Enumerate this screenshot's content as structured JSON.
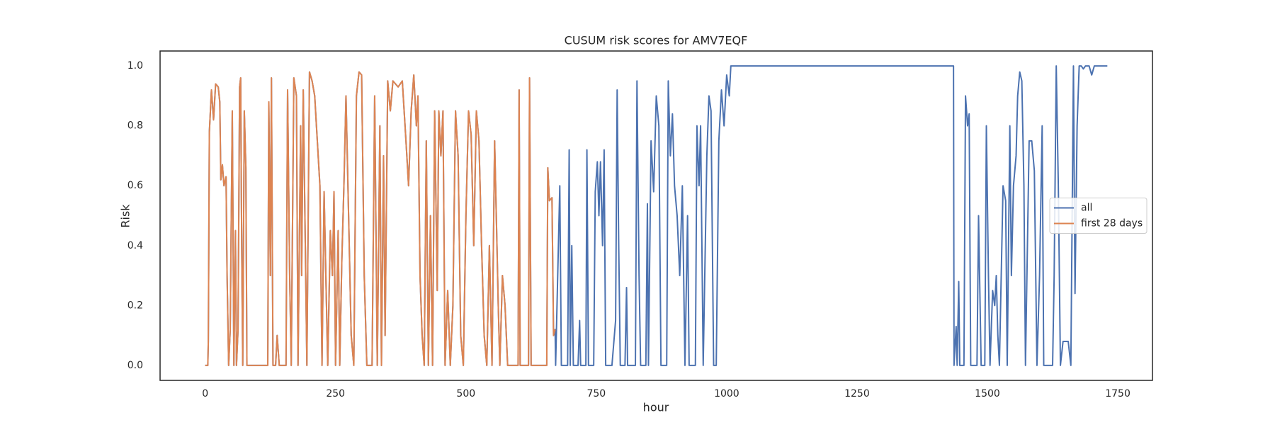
{
  "chart_data": {
    "type": "line",
    "title": "CUSUM risk scores for AMV7EQF",
    "x_label": "hour",
    "y_label": "Risk",
    "xlim": [
      -86.5,
      1816.5
    ],
    "ylim": [
      -0.05,
      1.05
    ],
    "xticks": [
      0,
      250,
      500,
      750,
      1000,
      1250,
      1500,
      1750
    ],
    "yticks": [
      {
        "value": 0,
        "label": "0.0"
      },
      0.2,
      0.4,
      0.6,
      0.8,
      {
        "value": 1,
        "label": "1.0"
      }
    ],
    "grid": false,
    "legend_loc": "center right",
    "series": [
      {
        "name": "all",
        "color": "#4c72b0",
        "x": [
          0,
          5,
          6,
          8,
          12,
          16,
          20,
          25,
          28,
          30,
          33,
          36,
          40,
          42,
          45,
          48,
          52,
          55,
          58,
          60,
          63,
          66,
          68,
          70,
          72,
          75,
          78,
          80,
          85,
          120,
          122,
          125,
          127,
          130,
          135,
          138,
          142,
          155,
          158,
          162,
          165,
          170,
          175,
          178,
          183,
          185,
          188,
          192,
          195,
          200,
          205,
          210,
          215,
          220,
          224,
          228,
          232,
          235,
          240,
          244,
          247,
          250,
          255,
          258,
          262,
          266,
          270,
          275,
          280,
          285,
          290,
          295,
          300,
          305,
          310,
          320,
          325,
          330,
          335,
          338,
          342,
          345,
          350,
          355,
          360,
          370,
          378,
          385,
          390,
          395,
          400,
          405,
          408,
          412,
          416,
          420,
          424,
          428,
          432,
          436,
          440,
          445,
          448,
          452,
          456,
          460,
          465,
          470,
          475,
          480,
          485,
          490,
          495,
          500,
          505,
          510,
          515,
          520,
          525,
          530,
          535,
          540,
          545,
          550,
          555,
          558,
          562,
          565,
          570,
          575,
          580,
          600,
          602,
          604,
          620,
          622,
          625,
          655,
          657,
          660,
          665,
          668,
          671,
          672,
          680,
          683,
          695,
          698,
          700,
          703,
          706,
          715,
          718,
          720,
          730,
          732,
          735,
          745,
          748,
          752,
          755,
          758,
          762,
          765,
          768,
          780,
          787,
          790,
          793,
          796,
          805,
          808,
          810,
          825,
          828,
          832,
          835,
          845,
          848,
          850,
          855,
          860,
          865,
          870,
          874,
          885,
          888,
          892,
          896,
          900,
          905,
          910,
          915,
          920,
          925,
          928,
          940,
          943,
          947,
          950,
          955,
          962,
          966,
          970,
          975,
          980,
          985,
          990,
          995,
          1000,
          1005,
          1008,
          1435,
          1436,
          1440,
          1442,
          1445,
          1447,
          1455,
          1458,
          1462,
          1465,
          1468,
          1480,
          1483,
          1486,
          1488,
          1495,
          1498,
          1502,
          1505,
          1510,
          1514,
          1517,
          1520,
          1523,
          1530,
          1535,
          1538,
          1543,
          1546,
          1550,
          1555,
          1558,
          1562,
          1566,
          1570,
          1573,
          1580,
          1585,
          1590,
          1595,
          1600,
          1605,
          1608,
          1625,
          1628,
          1632,
          1636,
          1640,
          1645,
          1655,
          1660,
          1665,
          1668,
          1672,
          1676,
          1680,
          1684,
          1688,
          1695,
          1700,
          1705,
          1730
        ],
        "values": [
          0,
          0,
          0.08,
          0.78,
          0.92,
          0.82,
          0.94,
          0.93,
          0.88,
          0.62,
          0.67,
          0.6,
          0.63,
          0.3,
          0,
          0.12,
          0.85,
          0,
          0.45,
          0,
          0.12,
          0.93,
          0.96,
          0.4,
          0,
          0.85,
          0.66,
          0,
          0,
          0,
          0.88,
          0.3,
          0.96,
          0,
          0,
          0.1,
          0,
          0,
          0.92,
          0.3,
          0,
          0.96,
          0.9,
          0,
          0.8,
          0.3,
          0.92,
          0.4,
          0,
          0.98,
          0.95,
          0.9,
          0.75,
          0.6,
          0,
          0.58,
          0.25,
          0,
          0.45,
          0.3,
          0.58,
          0,
          0.45,
          0,
          0.35,
          0.6,
          0.9,
          0.5,
          0.1,
          0,
          0.9,
          0.98,
          0.97,
          0.3,
          0,
          0,
          0.9,
          0,
          0.8,
          0,
          0.7,
          0.1,
          0.95,
          0.85,
          0.95,
          0.93,
          0.95,
          0.75,
          0.6,
          0.85,
          0.97,
          0.8,
          0.9,
          0.3,
          0.1,
          0,
          0.75,
          0,
          0.5,
          0,
          0.85,
          0.25,
          0.85,
          0.7,
          0.85,
          0,
          0.25,
          0,
          0.2,
          0.85,
          0.7,
          0.1,
          0,
          0.5,
          0.85,
          0.77,
          0.4,
          0.85,
          0.75,
          0.4,
          0.1,
          0,
          0.4,
          0,
          0.75,
          0.52,
          0.2,
          0,
          0.3,
          0.2,
          0,
          0,
          0.92,
          0,
          0,
          0.96,
          0,
          0,
          0.66,
          0.55,
          0.56,
          0.1,
          0.12,
          0,
          0.6,
          0,
          0,
          0.72,
          0,
          0.4,
          0,
          0,
          0.15,
          0,
          0,
          0.72,
          0,
          0,
          0.58,
          0.68,
          0.5,
          0.68,
          0.4,
          0.72,
          0,
          0,
          0.15,
          0.92,
          0.4,
          0,
          0,
          0.26,
          0,
          0,
          0.95,
          0.3,
          0,
          0,
          0.54,
          0,
          0.75,
          0.58,
          0.9,
          0.8,
          0,
          0,
          0.95,
          0.7,
          0.84,
          0.6,
          0.5,
          0.3,
          0.6,
          0,
          0.5,
          0,
          0,
          0.8,
          0.6,
          0.8,
          0,
          0.7,
          0.9,
          0.85,
          0,
          0,
          0.75,
          0.92,
          0.8,
          0.97,
          0.9,
          1,
          1,
          0,
          0.13,
          0,
          0.28,
          0,
          0,
          0.9,
          0.8,
          0.84,
          0,
          0,
          0.5,
          0.2,
          0,
          0,
          0.8,
          0.3,
          0,
          0.25,
          0.2,
          0.3,
          0.1,
          0,
          0.6,
          0.55,
          0,
          0.8,
          0.3,
          0.6,
          0.7,
          0.9,
          0.98,
          0.95,
          0.6,
          0,
          0.75,
          0.75,
          0.65,
          0,
          0.3,
          0.8,
          0,
          0,
          0.3,
          1,
          0.6,
          0,
          0.08,
          0.08,
          0,
          1,
          0.24,
          0.8,
          1,
          1,
          0.99,
          1,
          1,
          0.97,
          1,
          1
        ]
      },
      {
        "name": "first 28 days",
        "color": "#dd8452",
        "x": [
          0,
          5,
          6,
          8,
          12,
          16,
          20,
          25,
          28,
          30,
          33,
          36,
          40,
          42,
          45,
          48,
          52,
          55,
          58,
          60,
          63,
          66,
          68,
          70,
          72,
          75,
          78,
          80,
          85,
          120,
          122,
          125,
          127,
          130,
          135,
          138,
          142,
          155,
          158,
          162,
          165,
          170,
          175,
          178,
          183,
          185,
          188,
          192,
          195,
          200,
          205,
          210,
          215,
          220,
          224,
          228,
          232,
          235,
          240,
          244,
          247,
          250,
          255,
          258,
          262,
          266,
          270,
          275,
          280,
          285,
          290,
          295,
          300,
          305,
          310,
          320,
          325,
          330,
          335,
          338,
          342,
          345,
          350,
          355,
          360,
          370,
          378,
          385,
          390,
          395,
          400,
          405,
          408,
          412,
          416,
          420,
          424,
          428,
          432,
          436,
          440,
          445,
          448,
          452,
          456,
          460,
          465,
          470,
          475,
          480,
          485,
          490,
          495,
          500,
          505,
          510,
          515,
          520,
          525,
          530,
          535,
          540,
          545,
          550,
          555,
          558,
          562,
          565,
          570,
          575,
          580,
          600,
          602,
          604,
          620,
          622,
          625,
          655,
          657,
          660,
          665,
          668,
          671
        ],
        "values": [
          0,
          0,
          0.08,
          0.78,
          0.92,
          0.82,
          0.94,
          0.93,
          0.88,
          0.62,
          0.67,
          0.6,
          0.63,
          0.3,
          0,
          0.12,
          0.85,
          0,
          0.45,
          0,
          0.12,
          0.93,
          0.96,
          0.4,
          0,
          0.85,
          0.66,
          0,
          0,
          0,
          0.88,
          0.3,
          0.96,
          0,
          0,
          0.1,
          0,
          0,
          0.92,
          0.3,
          0,
          0.96,
          0.9,
          0,
          0.8,
          0.3,
          0.92,
          0.4,
          0,
          0.98,
          0.95,
          0.9,
          0.75,
          0.6,
          0,
          0.58,
          0.25,
          0,
          0.45,
          0.3,
          0.58,
          0,
          0.45,
          0,
          0.35,
          0.6,
          0.9,
          0.5,
          0.1,
          0,
          0.9,
          0.98,
          0.97,
          0.3,
          0,
          0,
          0.9,
          0,
          0.8,
          0,
          0.7,
          0.1,
          0.95,
          0.85,
          0.95,
          0.93,
          0.95,
          0.75,
          0.6,
          0.85,
          0.97,
          0.8,
          0.9,
          0.3,
          0.1,
          0,
          0.75,
          0,
          0.5,
          0,
          0.85,
          0.25,
          0.85,
          0.7,
          0.85,
          0,
          0.25,
          0,
          0.2,
          0.85,
          0.7,
          0.1,
          0,
          0.5,
          0.85,
          0.77,
          0.4,
          0.85,
          0.75,
          0.4,
          0.1,
          0,
          0.4,
          0,
          0.75,
          0.52,
          0.2,
          0,
          0.3,
          0.2,
          0,
          0,
          0.92,
          0,
          0,
          0.96,
          0,
          0,
          0.66,
          0.55,
          0.56,
          0.1,
          0.12
        ]
      }
    ]
  }
}
